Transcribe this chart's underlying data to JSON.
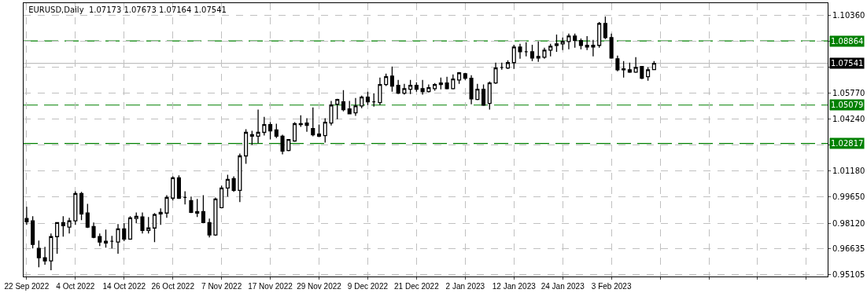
{
  "chart_data": {
    "type": "candlestick",
    "title": "EURUSD,Daily  1.07173 1.07673 1.07164 1.07541",
    "categories": [
      "22 Sep 2022",
      null,
      null,
      null,
      null,
      null,
      null,
      null,
      "4 Oct 2022",
      null,
      null,
      null,
      null,
      null,
      null,
      null,
      "14 Oct 2022",
      null,
      null,
      null,
      null,
      null,
      null,
      null,
      "26 Oct 2022",
      null,
      null,
      null,
      null,
      null,
      null,
      null,
      "7 Nov 2022",
      null,
      null,
      null,
      null,
      null,
      null,
      null,
      "17 Nov 2022",
      null,
      null,
      null,
      null,
      null,
      null,
      null,
      "29 Nov 2022",
      null,
      null,
      null,
      null,
      null,
      null,
      null,
      "9 Dec 2022",
      null,
      null,
      null,
      null,
      null,
      null,
      null,
      "21 Dec 2022",
      null,
      null,
      null,
      null,
      null,
      null,
      null,
      "2 Jan 2023",
      null,
      null,
      null,
      null,
      null,
      null,
      null,
      "12 Jan 2023",
      null,
      null,
      null,
      null,
      null,
      null,
      null,
      "24 Jan 2023",
      null,
      null,
      null,
      null,
      null,
      null,
      null,
      "3 Feb 2023",
      null,
      null,
      null,
      null,
      null,
      null,
      null,
      null,
      null,
      null,
      null,
      null,
      null,
      null,
      null,
      null,
      null,
      null,
      null,
      null,
      null,
      null,
      null,
      null,
      null,
      null,
      null,
      null,
      null,
      null,
      null,
      null,
      null,
      null,
      null
    ],
    "ohlc": [
      [
        0.9839,
        0.9908,
        0.9802,
        0.982
      ],
      [
        0.9825,
        0.9852,
        0.9663,
        0.9686
      ],
      [
        0.9663,
        0.9709,
        0.9552,
        0.9608
      ],
      [
        0.9608,
        0.9672,
        0.9566,
        0.9589
      ],
      [
        0.9589,
        0.9751,
        0.9534,
        0.9732
      ],
      [
        0.9732,
        0.9815,
        0.9631,
        0.9815
      ],
      [
        0.9815,
        0.9852,
        0.9732,
        0.9797
      ],
      [
        0.9788,
        0.9843,
        0.9751,
        0.9825
      ],
      [
        0.9825,
        1.0,
        0.9802,
        0.9986
      ],
      [
        0.9986,
        0.9996,
        0.9829,
        0.9866
      ],
      [
        0.9871,
        0.9926,
        0.9783,
        0.9788
      ],
      [
        0.9792,
        0.9815,
        0.9723,
        0.9728
      ],
      [
        0.9732,
        0.9751,
        0.9677,
        0.97
      ],
      [
        0.9695,
        0.9774,
        0.9667,
        0.9705
      ],
      [
        0.9705,
        0.9737,
        0.9663,
        0.9705
      ],
      [
        0.97,
        0.9806,
        0.9631,
        0.9778
      ],
      [
        0.9778,
        0.9811,
        0.9705,
        0.9718
      ],
      [
        0.9718,
        0.9852,
        0.9714,
        0.9843
      ],
      [
        0.9839,
        0.9875,
        0.9811,
        0.9852
      ],
      [
        0.9848,
        0.9875,
        0.9751,
        0.9769
      ],
      [
        0.9769,
        0.9848,
        0.9751,
        0.9783
      ],
      [
        0.9783,
        0.9871,
        0.97,
        0.9862
      ],
      [
        0.9875,
        0.9899,
        0.9802,
        0.9866
      ],
      [
        0.9871,
        0.9977,
        0.9843,
        0.9963
      ],
      [
        0.9959,
        1.0088,
        0.9945,
        1.0079
      ],
      [
        1.0079,
        1.0093,
        0.9954,
        0.9959
      ],
      [
        0.9963,
        1.0,
        0.9922,
        0.9963
      ],
      [
        0.9945,
        0.9968,
        0.9871,
        0.9875
      ],
      [
        0.988,
        0.9954,
        0.9848,
        0.9871
      ],
      [
        0.988,
        0.9977,
        0.9811,
        0.9815
      ],
      [
        0.9815,
        0.9839,
        0.9728,
        0.9742
      ],
      [
        0.9742,
        0.9963,
        0.9737,
        0.9954
      ],
      [
        0.9903,
        1.0033,
        0.9899,
        1.0019
      ],
      [
        1.0019,
        1.0097,
        0.9968,
        1.007
      ],
      [
        1.0074,
        1.0088,
        0.9996,
        1.0005
      ],
      [
        1.0005,
        1.0222,
        0.9936,
        1.0208
      ],
      [
        1.0208,
        1.0365,
        1.0162,
        1.0347
      ],
      [
        1.0333,
        1.0356,
        1.0273,
        1.0324
      ],
      [
        1.0324,
        1.0481,
        1.0282,
        1.0347
      ],
      [
        1.0347,
        1.0439,
        1.0328,
        1.0393
      ],
      [
        1.0393,
        1.0407,
        1.0305,
        1.0356
      ],
      [
        1.0361,
        1.0398,
        1.0314,
        1.0324
      ],
      [
        1.0324,
        1.0333,
        1.0217,
        1.0236
      ],
      [
        1.024,
        1.0305,
        1.0236,
        1.0305
      ],
      [
        1.0296,
        1.0407,
        1.0291,
        1.0398
      ],
      [
        1.0398,
        1.0448,
        1.0379,
        1.0393
      ],
      [
        1.0402,
        1.043,
        1.0351,
        1.0388
      ],
      [
        1.037,
        1.0494,
        1.0324,
        1.0333
      ],
      [
        1.0337,
        1.0393,
        1.0319,
        1.0324
      ],
      [
        1.0328,
        1.043,
        1.0287,
        1.0407
      ],
      [
        1.0402,
        1.0532,
        1.0388,
        1.0508
      ],
      [
        1.0513,
        1.0545,
        1.0425,
        1.0541
      ],
      [
        1.0527,
        1.0596,
        1.0471,
        1.0481
      ],
      [
        1.0485,
        1.0532,
        1.0453,
        1.0457
      ],
      [
        1.0462,
        1.055,
        1.0444,
        1.0503
      ],
      [
        1.0503,
        1.0564,
        1.049,
        1.0555
      ],
      [
        1.0555,
        1.0587,
        1.0508,
        1.0527
      ],
      [
        1.0527,
        1.0578,
        1.0499,
        1.0527
      ],
      [
        1.0522,
        1.067,
        1.0508,
        1.0629
      ],
      [
        1.0629,
        1.0693,
        1.062,
        1.0675
      ],
      [
        1.0679,
        1.0735,
        1.0587,
        1.062
      ],
      [
        1.0624,
        1.0656,
        1.0573,
        1.0578
      ],
      [
        1.0578,
        1.0633,
        1.0569,
        1.0605
      ],
      [
        1.0601,
        1.0656,
        1.0573,
        1.0624
      ],
      [
        1.0624,
        1.0642,
        1.0587,
        1.0601
      ],
      [
        1.0605,
        1.0656,
        1.0569,
        1.0587
      ],
      [
        1.0587,
        1.0629,
        1.0582,
        1.061
      ],
      [
        1.0605,
        1.0638,
        1.0592,
        1.0629
      ],
      [
        1.0638,
        1.067,
        1.0601,
        1.0629
      ],
      [
        1.0638,
        1.0675,
        1.0601,
        1.0605
      ],
      [
        1.0605,
        1.0689,
        1.0601,
        1.0661
      ],
      [
        1.0656,
        1.0702,
        1.0633,
        1.0698
      ],
      [
        1.0693,
        1.0698,
        1.0656,
        1.0666
      ],
      [
        1.0666,
        1.0684,
        1.0513,
        1.0545
      ],
      [
        1.0541,
        1.0633,
        1.0537,
        1.0601
      ],
      [
        1.0601,
        1.0629,
        1.0503,
        1.0508
      ],
      [
        1.0518,
        1.0647,
        1.0481,
        1.0638
      ],
      [
        1.0638,
        1.0758,
        1.0633,
        1.0726
      ],
      [
        1.073,
        1.0758,
        1.0716,
        1.073
      ],
      [
        1.0726,
        1.0772,
        1.0721,
        1.0758
      ],
      [
        1.0758,
        1.0864,
        1.0721,
        1.085
      ],
      [
        1.085,
        1.0869,
        1.0781,
        1.0822
      ],
      [
        1.0822,
        1.0878,
        1.0795,
        1.0822
      ],
      [
        1.0822,
        1.0864,
        1.0767,
        1.0786
      ],
      [
        1.0786,
        1.0883,
        1.0763,
        1.0795
      ],
      [
        1.079,
        1.0846,
        1.0781,
        1.0832
      ],
      [
        1.0832,
        1.0869,
        1.0795,
        1.0855
      ],
      [
        1.086,
        1.0924,
        1.0822,
        1.0869
      ],
      [
        1.0869,
        1.0906,
        1.0832,
        1.0883
      ],
      [
        1.0883,
        1.0929,
        1.0837,
        1.0915
      ],
      [
        1.0915,
        1.0929,
        1.0846,
        1.0888
      ],
      [
        1.0888,
        1.0901,
        1.0837,
        1.086
      ],
      [
        1.086,
        1.0915,
        1.0832,
        1.085
      ],
      [
        1.085,
        1.0892,
        1.0795,
        1.086
      ],
      [
        1.086,
        1.0998,
        1.0846,
        1.0989
      ],
      [
        1.0989,
        1.103,
        1.0897,
        1.0906
      ],
      [
        1.0906,
        1.0929,
        1.0781,
        1.0786
      ],
      [
        1.0781,
        1.08,
        1.0707,
        1.0716
      ],
      [
        1.0721,
        1.0767,
        1.067,
        1.0716
      ],
      [
        1.0716,
        1.0758,
        1.0698,
        1.0702
      ],
      [
        1.0702,
        1.079,
        1.0698,
        1.073
      ],
      [
        1.0735,
        1.0739,
        1.0661,
        1.0666
      ],
      [
        1.0675,
        1.073,
        1.0652,
        1.0716
      ],
      [
        1.07173,
        1.07673,
        1.07164,
        1.07541
      ],
      null,
      null,
      null,
      null,
      null,
      null,
      null,
      null,
      null,
      null,
      null,
      null,
      null,
      null,
      null,
      null,
      null,
      null,
      null,
      null,
      null,
      null,
      null,
      null,
      null,
      null,
      null,
      null
    ],
    "ylim": [
      0.9497,
      1.1109
    ],
    "yticks": [
      {
        "value": 1.1036,
        "label": "1.10360"
      },
      {
        "value": 1.0883,
        "label": null
      },
      {
        "value": 1.073,
        "label": null
      },
      {
        "value": 1.0577,
        "label": "1.05770"
      },
      {
        "value": 1.0424,
        "label": "1.04240"
      },
      {
        "value": 1.0271,
        "label": null
      },
      {
        "value": 1.0118,
        "label": "1.01180"
      },
      {
        "value": 0.9965,
        "label": "0.99650"
      },
      {
        "value": 0.9812,
        "label": "0.98120"
      },
      {
        "value": 0.96635,
        "label": "0.96635"
      },
      {
        "value": 0.95105,
        "label": "0.95105"
      }
    ],
    "ref_lines": [
      {
        "axis": "y",
        "value": 1.08864,
        "label": "1.08864",
        "color": "#008000",
        "line_style": "dashed"
      },
      {
        "axis": "y",
        "value": 1.05079,
        "label": "1.05079",
        "color": "#008000",
        "line_style": "dashed"
      },
      {
        "axis": "y",
        "value": 1.02817,
        "label": "1.02817",
        "color": "#008000",
        "line_style": "dashed"
      },
      {
        "axis": "y",
        "value": 1.07541,
        "label": "1.07541",
        "color": "#c0c0c0",
        "line_style": "solid"
      }
    ],
    "grid": true
  }
}
